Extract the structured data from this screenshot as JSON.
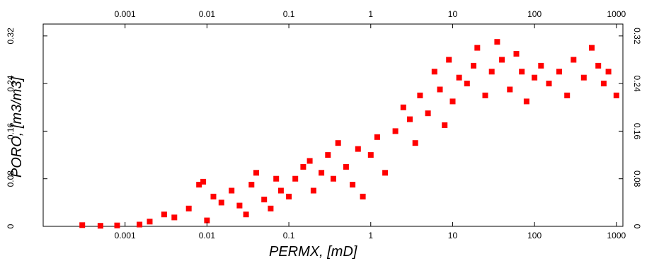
{
  "chart_data": {
    "type": "scatter",
    "xlabel": "PERMX, [mD]",
    "ylabel": "PORO, [m3/m3]",
    "xscale": "log",
    "xlim": [
      0.0001,
      1200
    ],
    "ylim": [
      0,
      0.34
    ],
    "x_ticks": [
      0.001,
      0.01,
      0.1,
      1,
      10,
      100,
      1000
    ],
    "x_tick_labels": [
      "0.001",
      "0.01",
      "0.1",
      "1",
      "10",
      "100",
      "1000"
    ],
    "y_ticks": [
      0,
      0.08,
      0.16,
      0.24,
      0.32
    ],
    "y_tick_labels_left": [
      "0",
      "0.08",
      "0.16",
      "0.24",
      "0.32"
    ],
    "y_tick_labels_right": [
      "0",
      "0.08",
      "0.16",
      "0.24",
      "0.32"
    ],
    "marker": "square",
    "point_color": "#ff0000",
    "grid": false,
    "points": [
      [
        0.0003,
        0.002
      ],
      [
        0.0005,
        0.001
      ],
      [
        0.0008,
        0.0015
      ],
      [
        0.0015,
        0.003
      ],
      [
        0.002,
        0.008
      ],
      [
        0.003,
        0.02
      ],
      [
        0.004,
        0.015
      ],
      [
        0.006,
        0.03
      ],
      [
        0.008,
        0.07
      ],
      [
        0.009,
        0.075
      ],
      [
        0.01,
        0.01
      ],
      [
        0.012,
        0.05
      ],
      [
        0.015,
        0.04
      ],
      [
        0.02,
        0.06
      ],
      [
        0.025,
        0.035
      ],
      [
        0.03,
        0.02
      ],
      [
        0.035,
        0.07
      ],
      [
        0.04,
        0.09
      ],
      [
        0.05,
        0.045
      ],
      [
        0.06,
        0.03
      ],
      [
        0.07,
        0.08
      ],
      [
        0.08,
        0.06
      ],
      [
        0.1,
        0.05
      ],
      [
        0.12,
        0.08
      ],
      [
        0.15,
        0.1
      ],
      [
        0.18,
        0.11
      ],
      [
        0.2,
        0.06
      ],
      [
        0.25,
        0.09
      ],
      [
        0.3,
        0.12
      ],
      [
        0.35,
        0.08
      ],
      [
        0.4,
        0.14
      ],
      [
        0.5,
        0.1
      ],
      [
        0.6,
        0.07
      ],
      [
        0.7,
        0.13
      ],
      [
        0.8,
        0.05
      ],
      [
        1,
        0.12
      ],
      [
        1.2,
        0.15
      ],
      [
        1.5,
        0.09
      ],
      [
        2,
        0.16
      ],
      [
        2.5,
        0.2
      ],
      [
        3,
        0.18
      ],
      [
        3.5,
        0.14
      ],
      [
        4,
        0.22
      ],
      [
        5,
        0.19
      ],
      [
        6,
        0.26
      ],
      [
        7,
        0.23
      ],
      [
        8,
        0.17
      ],
      [
        9,
        0.28
      ],
      [
        10,
        0.21
      ],
      [
        12,
        0.25
      ],
      [
        15,
        0.24
      ],
      [
        18,
        0.27
      ],
      [
        20,
        0.3
      ],
      [
        25,
        0.22
      ],
      [
        30,
        0.26
      ],
      [
        35,
        0.31
      ],
      [
        40,
        0.28
      ],
      [
        50,
        0.23
      ],
      [
        60,
        0.29
      ],
      [
        70,
        0.26
      ],
      [
        80,
        0.21
      ],
      [
        100,
        0.25
      ],
      [
        120,
        0.27
      ],
      [
        150,
        0.24
      ],
      [
        200,
        0.26
      ],
      [
        250,
        0.22
      ],
      [
        300,
        0.28
      ],
      [
        400,
        0.25
      ],
      [
        500,
        0.3
      ],
      [
        600,
        0.27
      ],
      [
        700,
        0.24
      ],
      [
        800,
        0.26
      ],
      [
        1000,
        0.22
      ]
    ]
  }
}
